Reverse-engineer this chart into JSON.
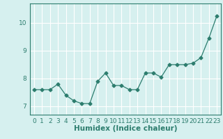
{
  "x": [
    0,
    1,
    2,
    3,
    4,
    5,
    6,
    7,
    8,
    9,
    10,
    11,
    12,
    13,
    14,
    15,
    16,
    17,
    18,
    19,
    20,
    21,
    22,
    23
  ],
  "y": [
    7.6,
    7.6,
    7.6,
    7.8,
    7.4,
    7.2,
    7.1,
    7.1,
    7.9,
    8.2,
    7.75,
    7.75,
    7.6,
    7.6,
    8.2,
    8.2,
    8.05,
    8.5,
    8.5,
    8.5,
    8.55,
    8.75,
    9.45,
    10.25
  ],
  "line_color": "#2d7d6e",
  "marker": "D",
  "marker_size": 2.5,
  "bg_color": "#d6f0ef",
  "grid_color": "#ffffff",
  "xlabel": "Humidex (Indice chaleur)",
  "xlabel_fontsize": 7.5,
  "ylim": [
    6.7,
    10.7
  ],
  "xlim": [
    -0.5,
    23.5
  ],
  "yticks": [
    7,
    8,
    9,
    10
  ],
  "xticks": [
    0,
    1,
    2,
    3,
    4,
    5,
    6,
    7,
    8,
    9,
    10,
    11,
    12,
    13,
    14,
    15,
    16,
    17,
    18,
    19,
    20,
    21,
    22,
    23
  ],
  "tick_fontsize": 6.5
}
